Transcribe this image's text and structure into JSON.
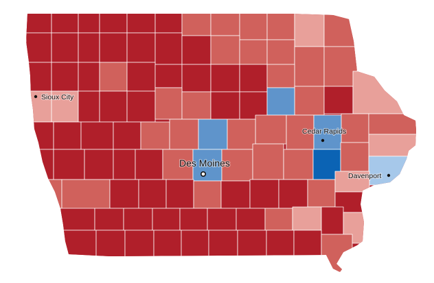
{
  "map": {
    "region": "Iowa",
    "colors": {
      "strong_red": "#b01f2a",
      "medium_red": "#d0615c",
      "light_red": "#e8a09a",
      "light_blue": "#a6c8ea",
      "medium_blue": "#5f94cb",
      "strong_blue": "#0b63b4"
    },
    "cities": {
      "sioux_city": {
        "name": "Sioux City"
      },
      "des_moines": {
        "name": "Des Moines"
      },
      "cedar_rapids": {
        "name": "Cedar Rapids"
      },
      "davenport": {
        "name": "Davenport"
      }
    }
  }
}
